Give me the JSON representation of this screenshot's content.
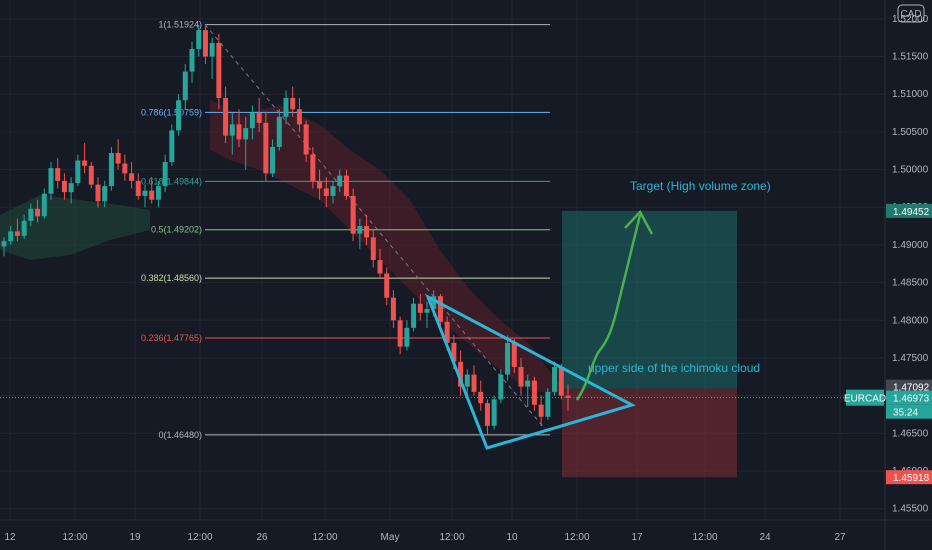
{
  "symbol": "EURCAD",
  "currency": "CAD",
  "colors": {
    "background": "#161a25",
    "grid": "#232632",
    "up": "#26a69a",
    "down": "#ef5350",
    "trendline": "#29b6d9",
    "arrow": "#4caf50",
    "target_zone": "#1e6b68",
    "stop_zone": "#7a2b33",
    "cloud": "#6b1f2a"
  },
  "chart_data": {
    "type": "candlestick",
    "y_axis": {
      "ticks": [
        "1.52000",
        "1.51500",
        "1.51000",
        "1.50500",
        "1.50000",
        "1.49500",
        "1.49000",
        "1.48500",
        "1.48000",
        "1.47500",
        "1.47000",
        "1.46500",
        "1.46000",
        "1.45500"
      ],
      "range": [
        1.4535,
        1.5225
      ]
    },
    "x_axis": {
      "ticks": [
        "12",
        "12:00",
        "19",
        "12:00",
        "26",
        "12:00",
        "May",
        "12:00",
        "10",
        "12:00",
        "17",
        "12:00",
        "24",
        "27"
      ]
    },
    "fib_levels": [
      {
        "label": "1(1.51924)",
        "value": 1.51924,
        "color": "#b2b5be"
      },
      {
        "label": "0.786(1.50759)",
        "value": 1.50759,
        "color": "#64b5f6"
      },
      {
        "label": "0.618(1.49844)",
        "value": 1.49844,
        "color": "#26a69a"
      },
      {
        "label": "0.5(1.49202)",
        "value": 1.49202,
        "color": "#81c784"
      },
      {
        "label": "0.382(1.48560)",
        "value": 1.4856,
        "color": "#c5e1a5"
      },
      {
        "label": "0.236(1.47765)",
        "value": 1.47765,
        "color": "#ef5350"
      },
      {
        "label": "0(1.46480)",
        "value": 1.4648,
        "color": "#b2b5be"
      }
    ],
    "annotations": [
      {
        "text": "Target (High volume zone)",
        "color": "#29b6d9"
      },
      {
        "text": "upper side of the ichimoku cloud",
        "color": "#29b6d9"
      }
    ],
    "price_tags": [
      {
        "text": "1.49452",
        "value": 1.49452,
        "bg": "#1f7a6f"
      },
      {
        "text": "1.47092",
        "value": 1.47092,
        "bg": "#434651"
      },
      {
        "text": "1.46973",
        "value": 1.46973,
        "bg": "#26a69a"
      },
      {
        "text": "35:24",
        "value": 1.46973,
        "bg": "#26a69a"
      },
      {
        "text": "1.45918",
        "value": 1.45918,
        "bg": "#ef5350"
      }
    ],
    "last_price": 1.46973,
    "countdown": "35:24",
    "target_price": 1.49452,
    "stop_price": 1.45918,
    "entry_price": 1.47092,
    "candles": [
      [
        1.4898,
        1.491,
        1.4885,
        1.4905
      ],
      [
        1.4905,
        1.4925,
        1.49,
        1.4918
      ],
      [
        1.4918,
        1.4935,
        1.4905,
        1.4912
      ],
      [
        1.4912,
        1.494,
        1.4908,
        1.4932
      ],
      [
        1.4932,
        1.4955,
        1.4925,
        1.4948
      ],
      [
        1.4948,
        1.496,
        1.493,
        1.4938
      ],
      [
        1.4938,
        1.4975,
        1.4935,
        1.4968
      ],
      [
        1.4968,
        1.501,
        1.496,
        1.5002
      ],
      [
        1.5002,
        1.5015,
        1.4975,
        1.4985
      ],
      [
        1.4985,
        1.4995,
        1.496,
        1.497
      ],
      [
        1.497,
        1.499,
        1.4955,
        1.4982
      ],
      [
        1.4982,
        1.502,
        1.4978,
        1.5012
      ],
      [
        1.5012,
        1.5035,
        1.4995,
        1.5005
      ],
      [
        1.5005,
        1.501,
        1.4975,
        1.498
      ],
      [
        1.498,
        1.499,
        1.495,
        1.4958
      ],
      [
        1.4958,
        1.4985,
        1.495,
        1.4978
      ],
      [
        1.4978,
        1.503,
        1.4972,
        1.5022
      ],
      [
        1.5022,
        1.504,
        1.5,
        1.5008
      ],
      [
        1.5008,
        1.502,
        1.4985,
        1.4995
      ],
      [
        1.4995,
        1.501,
        1.4975,
        1.4985
      ],
      [
        1.4985,
        1.4995,
        1.496,
        1.4965
      ],
      [
        1.4965,
        1.498,
        1.495,
        1.4972
      ],
      [
        1.4972,
        1.499,
        1.4955,
        1.496
      ],
      [
        1.496,
        1.4985,
        1.495,
        1.4978
      ],
      [
        1.4978,
        1.502,
        1.497,
        1.501
      ],
      [
        1.501,
        1.506,
        1.5005,
        1.5052
      ],
      [
        1.5052,
        1.51,
        1.5045,
        1.5092
      ],
      [
        1.5092,
        1.514,
        1.508,
        1.513
      ],
      [
        1.513,
        1.517,
        1.5115,
        1.516
      ],
      [
        1.516,
        1.5192,
        1.515,
        1.5185
      ],
      [
        1.5185,
        1.519,
        1.514,
        1.515
      ],
      [
        1.515,
        1.5175,
        1.512,
        1.5168
      ],
      [
        1.5168,
        1.518,
        1.508,
        1.5095
      ],
      [
        1.5095,
        1.511,
        1.5035,
        1.5045
      ],
      [
        1.5045,
        1.5075,
        1.502,
        1.506
      ],
      [
        1.506,
        1.508,
        1.503,
        1.504
      ],
      [
        1.504,
        1.507,
        1.5,
        1.5055
      ],
      [
        1.5055,
        1.5085,
        1.504,
        1.5075
      ],
      [
        1.5075,
        1.5095,
        1.505,
        1.5062
      ],
      [
        1.5062,
        1.5075,
        1.4985,
        1.4995
      ],
      [
        1.4995,
        1.504,
        1.499,
        1.503
      ],
      [
        1.503,
        1.508,
        1.5025,
        1.507
      ],
      [
        1.507,
        1.5105,
        1.506,
        1.5095
      ],
      [
        1.5095,
        1.511,
        1.507,
        1.508
      ],
      [
        1.508,
        1.5095,
        1.505,
        1.506
      ],
      [
        1.506,
        1.5065,
        1.501,
        1.502
      ],
      [
        1.502,
        1.503,
        1.4975,
        1.4985
      ],
      [
        1.4985,
        1.5,
        1.496,
        1.4975
      ],
      [
        1.4975,
        1.499,
        1.495,
        1.4965
      ],
      [
        1.4965,
        1.4985,
        1.4955,
        1.4978
      ],
      [
        1.4978,
        1.5,
        1.497,
        1.4992
      ],
      [
        1.4992,
        1.5,
        1.496,
        1.4965
      ],
      [
        1.4965,
        1.4975,
        1.4905,
        1.4915
      ],
      [
        1.4915,
        1.4935,
        1.4895,
        1.4925
      ],
      [
        1.4925,
        1.494,
        1.49,
        1.491
      ],
      [
        1.491,
        1.492,
        1.487,
        1.488
      ],
      [
        1.488,
        1.4895,
        1.4855,
        1.4862
      ],
      [
        1.4862,
        1.487,
        1.482,
        1.483
      ],
      [
        1.483,
        1.484,
        1.479,
        1.48
      ],
      [
        1.48,
        1.4805,
        1.4755,
        1.4765
      ],
      [
        1.4765,
        1.48,
        1.476,
        1.479
      ],
      [
        1.479,
        1.483,
        1.4785,
        1.4822
      ],
      [
        1.4822,
        1.4835,
        1.48,
        1.481
      ],
      [
        1.481,
        1.4825,
        1.479,
        1.4815
      ],
      [
        1.4815,
        1.484,
        1.4805,
        1.4832
      ],
      [
        1.4832,
        1.4835,
        1.479,
        1.4798
      ],
      [
        1.4798,
        1.4805,
        1.476,
        1.477
      ],
      [
        1.477,
        1.478,
        1.4735,
        1.4745
      ],
      [
        1.4745,
        1.476,
        1.47,
        1.4712
      ],
      [
        1.4712,
        1.4735,
        1.4695,
        1.4728
      ],
      [
        1.4728,
        1.474,
        1.47,
        1.4705
      ],
      [
        1.4705,
        1.472,
        1.468,
        1.469
      ],
      [
        1.469,
        1.4695,
        1.4648,
        1.466
      ],
      [
        1.466,
        1.47,
        1.4655,
        1.4695
      ],
      [
        1.4695,
        1.4735,
        1.469,
        1.4728
      ],
      [
        1.4728,
        1.478,
        1.472,
        1.477
      ],
      [
        1.477,
        1.4775,
        1.473,
        1.4738
      ],
      [
        1.4738,
        1.475,
        1.47,
        1.4712
      ],
      [
        1.4712,
        1.4728,
        1.4685,
        1.472
      ],
      [
        1.472,
        1.4725,
        1.468,
        1.4688
      ],
      [
        1.4688,
        1.47,
        1.466,
        1.4672
      ],
      [
        1.4672,
        1.471,
        1.4668,
        1.4705
      ],
      [
        1.4705,
        1.4745,
        1.47,
        1.4738
      ],
      [
        1.4738,
        1.4742,
        1.4695,
        1.47
      ],
      [
        1.47,
        1.4715,
        1.468,
        1.4697
      ]
    ]
  }
}
